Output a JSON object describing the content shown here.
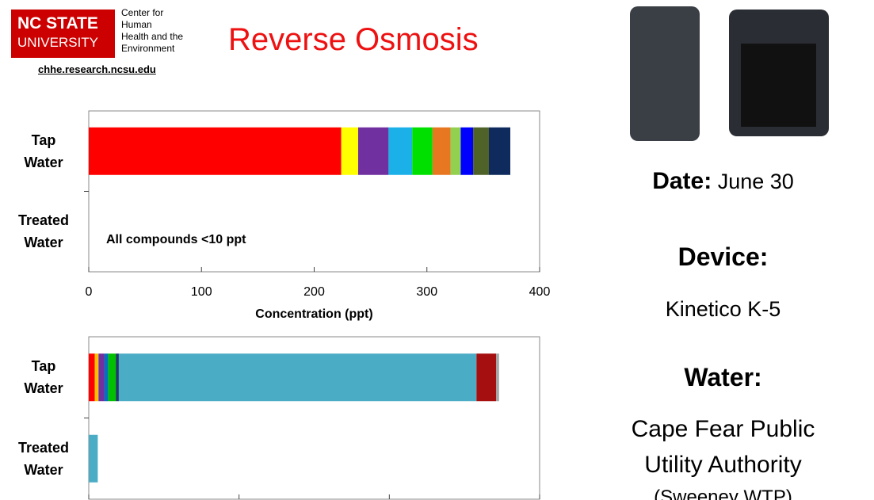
{
  "header": {
    "logo_line1": "NC STATE",
    "logo_line2": "UNIVERSITY",
    "center_lines": [
      "Center for",
      "Human",
      "Health and the",
      "Environment"
    ],
    "url": "chhe.research.ncsu.edu",
    "title": "Reverse Osmosis"
  },
  "info": {
    "date_label": "Date:",
    "date": "June 30",
    "device_label": "Device:",
    "device": "Kinetico K-5",
    "water_label": "Water:",
    "water_lines": [
      "Cape Fear Public",
      "Utility Authority",
      "(Sweeney WTP)"
    ]
  },
  "chart_data": [
    {
      "type": "bar",
      "orientation": "horizontal",
      "stacked": true,
      "categories": [
        "Tap Water",
        "Treated Water"
      ],
      "xlabel": "Concentration (ppt)",
      "annotation": "All compounds <10 ppt",
      "xlim": [
        0,
        400
      ],
      "xticks": [
        0,
        100,
        200,
        300,
        400
      ],
      "series": [
        {
          "color": "#ff0000",
          "values": [
            224,
            null
          ]
        },
        {
          "color": "#ffff00",
          "values": [
            15,
            null
          ]
        },
        {
          "color": "#7030a0",
          "values": [
            27,
            null
          ]
        },
        {
          "color": "#1cb0e8",
          "values": [
            21,
            null
          ]
        },
        {
          "color": "#00e000",
          "values": [
            18,
            null
          ]
        },
        {
          "color": "#e87722",
          "values": [
            16,
            null
          ]
        },
        {
          "color": "#92d050",
          "values": [
            9,
            null
          ]
        },
        {
          "color": "#0000ff",
          "values": [
            11,
            null
          ]
        },
        {
          "color": "#4f6228",
          "values": [
            14,
            null
          ]
        },
        {
          "color": "#0f2a5c",
          "values": [
            19,
            null
          ]
        }
      ]
    },
    {
      "type": "bar",
      "orientation": "horizontal",
      "stacked": true,
      "categories": [
        "Tap Water",
        "Treated Water"
      ],
      "xlim": [
        0,
        3000
      ],
      "xticks": [
        0,
        1000,
        2000,
        3000
      ],
      "series": [
        {
          "color": "#ff0000",
          "values": [
            40,
            null
          ]
        },
        {
          "color": "#ffc000",
          "values": [
            25,
            null
          ]
        },
        {
          "color": "#7030a0",
          "values": [
            40,
            null
          ]
        },
        {
          "color": "#0070c0",
          "values": [
            25,
            null
          ]
        },
        {
          "color": "#00c000",
          "values": [
            50,
            null
          ]
        },
        {
          "color": "#1f3864",
          "values": [
            20,
            null
          ]
        },
        {
          "color": "#4bacc6",
          "values": [
            2380,
            60
          ]
        },
        {
          "color": "#a50f0f",
          "values": [
            130,
            null
          ]
        },
        {
          "color": "#a6a6a6",
          "values": [
            20,
            null
          ]
        }
      ]
    }
  ]
}
